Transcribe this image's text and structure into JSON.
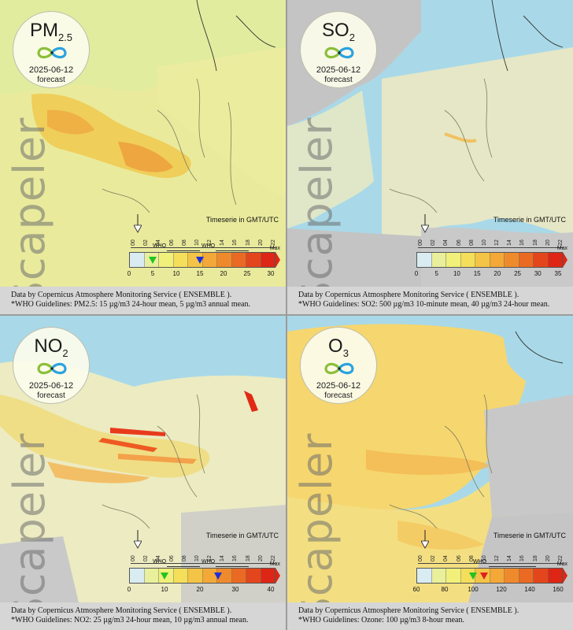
{
  "panels": [
    {
      "pollutant_main": "PM",
      "pollutant_sub": "2.5",
      "date": "2025-06-12",
      "forecast_label": "forecast",
      "watermark": "Scapeler",
      "timeserie_label": "Timeserie in GMT/UTC",
      "hours": [
        "00",
        "02",
        "04",
        "06",
        "08",
        "10",
        "12",
        "14",
        "16",
        "18",
        "20",
        "22"
      ],
      "who_labels": [
        "WHO",
        "WHO"
      ],
      "max_label": "Max",
      "scale_ticks": [
        "0",
        "5",
        "10",
        "15",
        "20",
        "25",
        "30"
      ],
      "who_markers": [
        {
          "value": 5,
          "color": "#22c322"
        },
        {
          "value": 15,
          "color": "#1f2fd6"
        }
      ],
      "colors": [
        "#d8ecf2",
        "#e9ef9a",
        "#f0f07a",
        "#f5de5a",
        "#f4c446",
        "#f3a838",
        "#ef8a2c",
        "#ea6a24",
        "#e3461c",
        "#dd2615"
      ],
      "footer_line1": "Data by Copernicus Atmosphere Monitoring Service ( ENSEMBLE ).",
      "footer_line2": "*WHO Guidelines: PM2.5: 15 µg/m3 24-hour mean, 5 µg/m3 annual mean."
    },
    {
      "pollutant_main": "SO",
      "pollutant_sub": "2",
      "date": "2025-06-12",
      "forecast_label": "forecast",
      "watermark": "Scapeler",
      "timeserie_label": "Timeserie in GMT/UTC",
      "hours": [
        "00",
        "02",
        "04",
        "06",
        "08",
        "10",
        "12",
        "14",
        "16",
        "18",
        "20",
        "22"
      ],
      "who_labels": [],
      "max_label": "Max",
      "scale_ticks": [
        "0",
        "5",
        "10",
        "15",
        "20",
        "25",
        "30",
        "35"
      ],
      "who_markers": [],
      "colors": [
        "#d8ecf2",
        "#e9ef9a",
        "#f0f07a",
        "#f5de5a",
        "#f4c446",
        "#f3a838",
        "#ef8a2c",
        "#ea6a24",
        "#e3461c",
        "#dd2615"
      ],
      "footer_line1": "Data by Copernicus Atmosphere Monitoring Service ( ENSEMBLE ).",
      "footer_line2": "*WHO Guidelines: SO2: 500 µg/m3 10-minute mean, 40 µg/m3 24-hour mean."
    },
    {
      "pollutant_main": "NO",
      "pollutant_sub": "2",
      "date": "2025-06-12",
      "forecast_label": "forecast",
      "watermark": "Scapeler",
      "timeserie_label": "Timeserie in GMT/UTC",
      "hours": [
        "00",
        "02",
        "04",
        "06",
        "08",
        "10",
        "12",
        "14",
        "16",
        "18",
        "20",
        "22"
      ],
      "who_labels": [
        "WHO",
        "WHO"
      ],
      "max_label": "Max",
      "scale_ticks": [
        "0",
        "10",
        "20",
        "30",
        "40"
      ],
      "who_markers": [
        {
          "value": 10,
          "color": "#22c322"
        },
        {
          "value": 25,
          "color": "#1f2fd6"
        }
      ],
      "colors": [
        "#d8ecf2",
        "#e9ef9a",
        "#f0f07a",
        "#f5de5a",
        "#f4c446",
        "#f3a838",
        "#ef8a2c",
        "#ea6a24",
        "#e3461c",
        "#dd2615"
      ],
      "footer_line1": "Data by Copernicus Atmosphere Monitoring Service ( ENSEMBLE ).",
      "footer_line2": "*WHO Guidelines: NO2: 25 µg/m3 24-hour mean, 10 µg/m3 annual mean."
    },
    {
      "pollutant_main": "O",
      "pollutant_sub": "3",
      "date": "2025-06-12",
      "forecast_label": "forecast",
      "watermark": "Scapeler",
      "timeserie_label": "Timeserie in GMT/UTC",
      "hours": [
        "00",
        "02",
        "04",
        "06",
        "08",
        "10",
        "12",
        "14",
        "16",
        "18",
        "20",
        "22"
      ],
      "who_labels": [
        "WHO"
      ],
      "max_label": "Max",
      "scale_ticks": [
        "60",
        "80",
        "100",
        "120",
        "140",
        "160"
      ],
      "who_markers": [
        {
          "value": 100,
          "color": "#22c322"
        },
        {
          "value": 108,
          "color": "#e02020"
        }
      ],
      "colors": [
        "#d8ecf2",
        "#e9ef9a",
        "#f0f07a",
        "#f5de5a",
        "#f4c446",
        "#f3a838",
        "#ef8a2c",
        "#ea6a24",
        "#e3461c",
        "#dd2615"
      ],
      "footer_line1": "Data by Copernicus Atmosphere Monitoring Service ( ENSEMBLE ).",
      "footer_line2": "*WHO Guidelines: Ozone: 100 µg/m3 8-hour mean."
    }
  ]
}
